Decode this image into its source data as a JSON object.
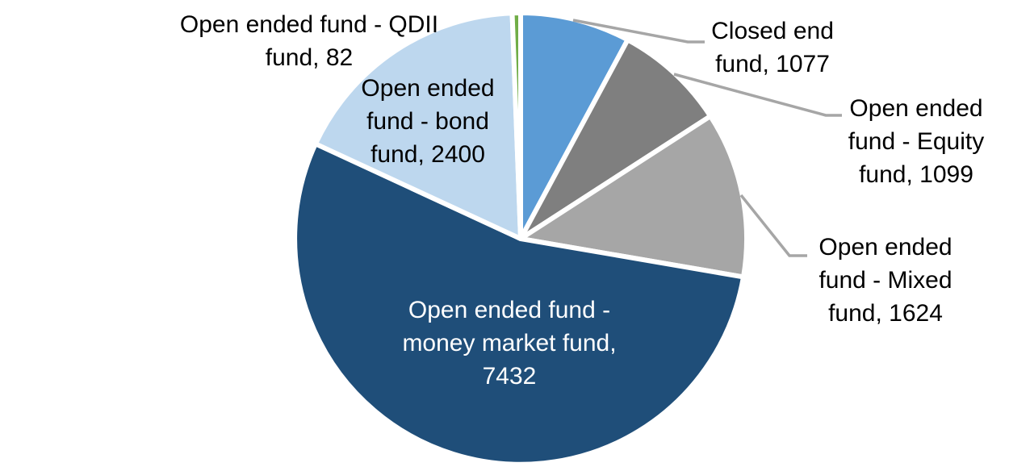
{
  "chart_data": {
    "type": "pie",
    "title": "",
    "legend": "none",
    "direction": "clockwise",
    "start_angle_deg": 0,
    "total": 13714,
    "slice_border_color": "#FFFFFF",
    "leader_line_color": "#A6A6A6",
    "slices": [
      {
        "name": "Closed end fund",
        "value": 1077,
        "color": "#5B9BD5",
        "label_text_color": "#000000",
        "label_position": "outside",
        "label_lines": [
          "Closed end",
          "fund, 1077"
        ]
      },
      {
        "name": "Open ended fund - Equity fund",
        "value": 1099,
        "color": "#7F7F7F",
        "label_text_color": "#000000",
        "label_position": "outside",
        "label_lines": [
          "Open ended",
          "fund - Equity",
          "fund, 1099"
        ]
      },
      {
        "name": "Open ended fund - Mixed fund",
        "value": 1624,
        "color": "#A6A6A6",
        "label_text_color": "#000000",
        "label_position": "outside",
        "label_lines": [
          "Open ended",
          "fund - Mixed",
          "fund, 1624"
        ]
      },
      {
        "name": "Open ended fund - money market fund",
        "value": 7432,
        "color": "#1F4E79",
        "label_text_color": "#FFFFFF",
        "label_position": "inside",
        "label_lines": [
          "Open ended fund -",
          "money market fund,",
          "7432"
        ]
      },
      {
        "name": "Open ended fund - bond fund",
        "value": 2400,
        "color": "#BDD7EE",
        "label_text_color": "#000000",
        "label_position": "on-slice",
        "label_lines": [
          "Open ended",
          "fund - bond",
          "fund, 2400"
        ]
      },
      {
        "name": "Open ended fund - QDII fund",
        "value": 82,
        "color": "#70AD47",
        "label_text_color": "#000000",
        "label_position": "outside",
        "label_lines": [
          "Open ended fund - QDII",
          "fund, 82"
        ]
      }
    ]
  }
}
